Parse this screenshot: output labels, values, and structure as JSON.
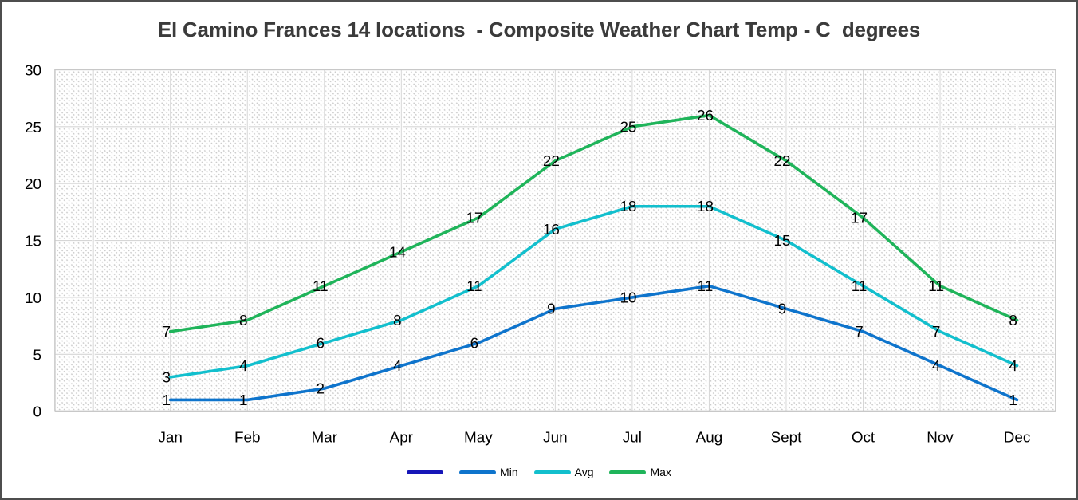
{
  "window": {
    "background": "#ffffff",
    "frame_border_color": "#4e4e4e"
  },
  "chart_data": {
    "type": "line",
    "title": "El Camino Frances 14 locations  - Composite Weather Chart Temp - C  degrees",
    "title_color": "#3b3b3b",
    "categories": [
      "Jan",
      "Feb",
      "Mar",
      "Apr",
      "May",
      "Jun",
      "Jul",
      "Aug",
      "Sept",
      "Oct",
      "Nov",
      "Dec"
    ],
    "leading_blank_category": true,
    "series": [
      {
        "name": "",
        "color": "#1616b8",
        "values": []
      },
      {
        "name": "Min",
        "color": "#0e74cc",
        "values": [
          1,
          1,
          2,
          4,
          6,
          9,
          10,
          11,
          9,
          7,
          4,
          1
        ]
      },
      {
        "name": "Avg",
        "color": "#12bfcd",
        "values": [
          3,
          4,
          6,
          8,
          11,
          16,
          18,
          18,
          15,
          11,
          7,
          4
        ]
      },
      {
        "name": "Max",
        "color": "#1fb45a",
        "values": [
          7,
          8,
          11,
          14,
          17,
          22,
          25,
          26,
          22,
          17,
          11,
          8
        ]
      }
    ],
    "xlabel": "",
    "ylabel": "",
    "ylim": [
      0,
      30
    ],
    "yticks": [
      0,
      5,
      10,
      15,
      20,
      25,
      30
    ],
    "grid": true,
    "data_labels": true,
    "legend_position": "bottom",
    "plot_background": "hatched",
    "hatch_color": "#bdbdbd",
    "gridline_color": "#d6d6d6",
    "plot_border_color": "#c8c8c8",
    "axis_line_color": "#b5b5b5",
    "axis_text_color": "#000000"
  }
}
